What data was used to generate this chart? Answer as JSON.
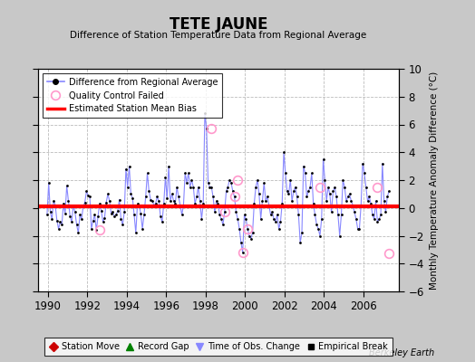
{
  "title": "TETE JAUNE",
  "subtitle": "Difference of Station Temperature Data from Regional Average",
  "ylabel_right": "Monthly Temperature Anomaly Difference (°C)",
  "xlim": [
    1989.5,
    2007.8
  ],
  "ylim": [
    -6,
    10
  ],
  "yticks": [
    -6,
    -4,
    -2,
    0,
    2,
    4,
    6,
    8,
    10
  ],
  "xticks": [
    1990,
    1992,
    1994,
    1996,
    1998,
    2000,
    2002,
    2004,
    2006
  ],
  "bias_value": 0.1,
  "bias_color": "#ff0000",
  "line_color": "#8888ff",
  "marker_color": "#000000",
  "qc_color": "#ff99cc",
  "bg_color": "#ffffff",
  "outer_bg": "#c8c8c8",
  "grid_color": "#bbbbbb",
  "watermark": "Berkeley Earth",
  "legend1_entries": [
    {
      "label": "Difference from Regional Average"
    },
    {
      "label": "Quality Control Failed"
    },
    {
      "label": "Estimated Station Mean Bias"
    }
  ],
  "legend2_entries": [
    {
      "label": "Station Move"
    },
    {
      "label": "Record Gap"
    },
    {
      "label": "Time of Obs. Change"
    },
    {
      "label": "Empirical Break"
    }
  ],
  "data_x": [
    1989.958,
    1990.042,
    1990.125,
    1990.208,
    1990.292,
    1990.375,
    1990.458,
    1990.542,
    1990.625,
    1990.708,
    1990.792,
    1990.875,
    1990.958,
    1991.042,
    1991.125,
    1991.208,
    1991.292,
    1991.375,
    1991.458,
    1991.542,
    1991.625,
    1991.708,
    1991.792,
    1991.875,
    1991.958,
    1992.042,
    1992.125,
    1992.208,
    1992.292,
    1992.375,
    1992.458,
    1992.542,
    1992.625,
    1992.708,
    1992.792,
    1992.875,
    1992.958,
    1993.042,
    1993.125,
    1993.208,
    1993.292,
    1993.375,
    1993.458,
    1993.542,
    1993.625,
    1993.708,
    1993.792,
    1993.875,
    1993.958,
    1994.042,
    1994.125,
    1994.208,
    1994.292,
    1994.375,
    1994.458,
    1994.542,
    1994.625,
    1994.708,
    1994.792,
    1994.875,
    1994.958,
    1995.042,
    1995.125,
    1995.208,
    1995.292,
    1995.375,
    1995.458,
    1995.542,
    1995.625,
    1995.708,
    1995.792,
    1995.875,
    1995.958,
    1996.042,
    1996.125,
    1996.208,
    1996.292,
    1996.375,
    1996.458,
    1996.542,
    1996.625,
    1996.708,
    1996.792,
    1996.875,
    1996.958,
    1997.042,
    1997.125,
    1997.208,
    1997.292,
    1997.375,
    1997.458,
    1997.542,
    1997.625,
    1997.708,
    1997.792,
    1997.875,
    1997.958,
    1998.042,
    1998.125,
    1998.208,
    1998.292,
    1998.375,
    1998.458,
    1998.542,
    1998.625,
    1998.708,
    1998.792,
    1998.875,
    1998.958,
    1999.042,
    1999.125,
    1999.208,
    1999.292,
    1999.375,
    1999.458,
    1999.542,
    1999.625,
    1999.708,
    1999.792,
    1999.875,
    1999.958,
    2000.042,
    2000.125,
    2000.208,
    2000.292,
    2000.375,
    2000.458,
    2000.542,
    2000.625,
    2000.708,
    2000.792,
    2000.875,
    2000.958,
    2001.042,
    2001.125,
    2001.208,
    2001.292,
    2001.375,
    2001.458,
    2001.542,
    2001.625,
    2001.708,
    2001.792,
    2001.875,
    2001.958,
    2002.042,
    2002.125,
    2002.208,
    2002.292,
    2002.375,
    2002.458,
    2002.542,
    2002.625,
    2002.708,
    2002.792,
    2002.875,
    2002.958,
    2003.042,
    2003.125,
    2003.208,
    2003.292,
    2003.375,
    2003.458,
    2003.542,
    2003.625,
    2003.708,
    2003.792,
    2003.875,
    2003.958,
    2004.042,
    2004.125,
    2004.208,
    2004.292,
    2004.375,
    2004.458,
    2004.542,
    2004.625,
    2004.708,
    2004.792,
    2004.875,
    2004.958,
    2005.042,
    2005.125,
    2005.208,
    2005.292,
    2005.375,
    2005.458,
    2005.542,
    2005.625,
    2005.708,
    2005.792,
    2005.875,
    2005.958,
    2006.042,
    2006.125,
    2006.208,
    2006.292,
    2006.375,
    2006.458,
    2006.542,
    2006.625,
    2006.708,
    2006.792,
    2006.875,
    2006.958,
    2007.042,
    2007.125,
    2007.208,
    2007.292
  ],
  "data_y": [
    -0.5,
    1.8,
    -0.3,
    -0.8,
    0.5,
    0.2,
    -0.9,
    -1.5,
    -1.0,
    -1.2,
    0.3,
    -0.4,
    1.6,
    0.5,
    -0.6,
    -1.0,
    0.2,
    -0.3,
    -1.2,
    -1.8,
    -0.5,
    -0.8,
    0.1,
    0.4,
    1.2,
    0.9,
    0.8,
    -1.5,
    -0.9,
    -0.5,
    -1.6,
    -0.6,
    0.3,
    -0.2,
    -1.0,
    -0.7,
    0.4,
    1.0,
    0.5,
    -0.4,
    -0.3,
    -0.6,
    -0.5,
    -0.2,
    0.6,
    -0.8,
    -1.2,
    -0.3,
    2.8,
    1.5,
    3.0,
    1.0,
    0.7,
    -0.5,
    -1.8,
    0.3,
    0.2,
    -0.4,
    -1.5,
    -0.5,
    0.8,
    2.5,
    1.2,
    0.6,
    0.5,
    0.2,
    0.3,
    0.8,
    0.5,
    -0.6,
    -1.0,
    0.3,
    2.2,
    0.7,
    3.0,
    0.5,
    1.0,
    0.5,
    0.3,
    1.5,
    0.8,
    0.2,
    -0.5,
    0.2,
    2.5,
    1.8,
    2.5,
    1.5,
    2.0,
    1.5,
    0.3,
    0.8,
    1.5,
    0.5,
    -0.8,
    0.3,
    6.8,
    5.7,
    1.8,
    1.5,
    1.5,
    0.8,
    -0.3,
    0.5,
    0.3,
    -0.5,
    -0.8,
    -1.2,
    -0.3,
    1.2,
    1.5,
    2.0,
    1.8,
    1.2,
    0.8,
    -0.3,
    -0.8,
    -1.5,
    -2.5,
    -3.2,
    -0.5,
    -0.8,
    -1.5,
    -2.0,
    -2.2,
    -1.8,
    0.3,
    1.5,
    2.0,
    1.0,
    -0.8,
    0.5,
    1.8,
    0.5,
    0.8,
    0.2,
    -0.5,
    -0.3,
    -0.8,
    -1.0,
    -0.5,
    -1.5,
    -1.0,
    0.3,
    4.0,
    2.5,
    1.2,
    1.0,
    2.0,
    0.5,
    1.2,
    1.5,
    0.8,
    -0.5,
    -2.5,
    -1.8,
    3.0,
    2.5,
    0.8,
    1.2,
    1.5,
    2.5,
    0.3,
    -0.5,
    -1.2,
    -1.5,
    -2.0,
    -0.8,
    3.5,
    2.0,
    0.5,
    1.5,
    1.0,
    -0.3,
    1.2,
    1.5,
    0.8,
    -0.5,
    -2.0,
    -0.5,
    2.0,
    1.5,
    0.5,
    0.8,
    1.0,
    0.5,
    0.2,
    -0.3,
    -0.8,
    -1.5,
    -1.5,
    0.2,
    3.2,
    2.5,
    1.5,
    0.5,
    0.8,
    0.3,
    -0.5,
    -0.8,
    0.5,
    -1.0,
    -0.8,
    -0.5,
    3.2,
    0.5,
    -0.3,
    0.8,
    1.2
  ],
  "qc_failed_x": [
    1992.625,
    1998.292,
    1998.958,
    1999.458,
    1999.625,
    1999.875,
    2000.125,
    2003.792,
    2006.708,
    2007.292
  ],
  "qc_failed_y": [
    -1.6,
    5.7,
    -0.3,
    0.8,
    2.0,
    -3.2,
    -1.5,
    1.5,
    1.5,
    -3.3
  ]
}
